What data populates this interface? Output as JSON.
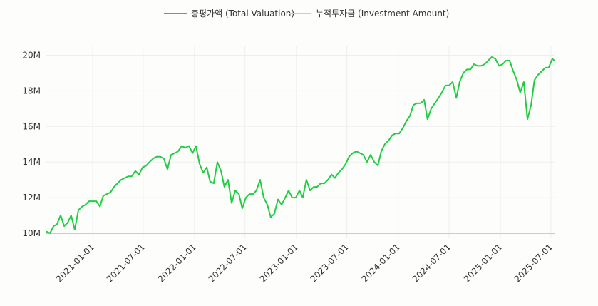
{
  "chart_data": {
    "type": "line",
    "title": "",
    "xlabel": "",
    "ylabel": "",
    "grid": true,
    "legend_placement": "top-center",
    "xlim": [
      "2020-07-19",
      "2025-07-14"
    ],
    "ylim": [
      10000000,
      20500000
    ],
    "x_ticks": [
      "2021-01-01",
      "2021-07-01",
      "2022-01-01",
      "2022-07-01",
      "2023-01-01",
      "2023-07-01",
      "2024-01-01",
      "2024-07-01",
      "2025-01-01",
      "2025-07-01"
    ],
    "y_ticks": [
      {
        "value": 10000000,
        "label": "10M"
      },
      {
        "value": 12000000,
        "label": "12M"
      },
      {
        "value": 14000000,
        "label": "14M"
      },
      {
        "value": 16000000,
        "label": "16M"
      },
      {
        "value": 18000000,
        "label": "18M"
      },
      {
        "value": 20000000,
        "label": "20M"
      }
    ],
    "x": [
      "2020-07-19",
      "2020-08-01",
      "2020-08-14",
      "2020-08-26",
      "2020-09-08",
      "2020-09-21",
      "2020-10-04",
      "2020-10-16",
      "2020-10-29",
      "2020-11-11",
      "2020-11-24",
      "2020-12-06",
      "2020-12-19",
      "2021-01-01",
      "2021-01-14",
      "2021-01-27",
      "2021-02-08",
      "2021-02-21",
      "2021-03-06",
      "2021-03-19",
      "2021-03-31",
      "2021-04-13",
      "2021-04-26",
      "2021-05-09",
      "2021-05-21",
      "2021-06-03",
      "2021-06-16",
      "2021-06-29",
      "2021-07-12",
      "2021-07-24",
      "2021-08-06",
      "2021-08-19",
      "2021-09-01",
      "2021-09-13",
      "2021-09-26",
      "2021-10-09",
      "2021-10-22",
      "2021-11-03",
      "2021-11-16",
      "2021-11-29",
      "2021-12-12",
      "2021-12-25",
      "2022-01-06",
      "2022-01-19",
      "2022-02-01",
      "2022-02-14",
      "2022-02-26",
      "2022-03-11",
      "2022-03-24",
      "2022-04-06",
      "2022-04-18",
      "2022-05-01",
      "2022-05-14",
      "2022-05-27",
      "2022-06-09",
      "2022-06-21",
      "2022-07-04",
      "2022-07-17",
      "2022-07-30",
      "2022-08-11",
      "2022-08-24",
      "2022-09-06",
      "2022-09-19",
      "2022-10-01",
      "2022-10-14",
      "2022-10-27",
      "2022-11-09",
      "2022-11-22",
      "2022-12-04",
      "2022-12-17",
      "2022-12-30",
      "2023-01-12",
      "2023-01-24",
      "2023-02-06",
      "2023-02-19",
      "2023-03-04",
      "2023-03-16",
      "2023-03-29",
      "2023-04-11",
      "2023-04-24",
      "2023-05-07",
      "2023-05-19",
      "2023-06-01",
      "2023-06-14",
      "2023-06-27",
      "2023-07-09",
      "2023-07-22",
      "2023-08-04",
      "2023-08-17",
      "2023-08-29",
      "2023-09-11",
      "2023-09-24",
      "2023-10-07",
      "2023-10-20",
      "2023-11-01",
      "2023-11-14",
      "2023-11-27",
      "2023-12-10",
      "2023-12-22",
      "2024-01-04",
      "2024-01-17",
      "2024-01-30",
      "2024-02-12",
      "2024-02-24",
      "2024-03-08",
      "2024-03-21",
      "2024-04-03",
      "2024-04-15",
      "2024-04-28",
      "2024-05-11",
      "2024-05-24",
      "2024-06-05",
      "2024-06-18",
      "2024-07-01",
      "2024-07-14",
      "2024-07-27",
      "2024-08-08",
      "2024-08-21",
      "2024-09-03",
      "2024-09-16",
      "2024-09-28",
      "2024-10-11",
      "2024-10-24",
      "2024-11-06",
      "2024-11-18",
      "2024-12-01",
      "2024-12-14",
      "2024-12-27",
      "2025-01-09",
      "2025-01-21",
      "2025-02-03",
      "2025-02-16",
      "2025-03-01",
      "2025-03-13",
      "2025-03-26",
      "2025-04-08",
      "2025-04-21",
      "2025-05-03",
      "2025-05-16",
      "2025-05-29",
      "2025-06-11",
      "2025-06-23",
      "2025-07-06",
      "2025-07-14"
    ],
    "series": [
      {
        "name": "총평가액 (Total Valuation)",
        "color": "#22cc44",
        "values": [
          10100000,
          10000000,
          10400000,
          10500000,
          11000000,
          10400000,
          10600000,
          11000000,
          10200000,
          11300000,
          11500000,
          11600000,
          11800000,
          11800000,
          11800000,
          11500000,
          12100000,
          12200000,
          12300000,
          12600000,
          12800000,
          13000000,
          13100000,
          13200000,
          13200000,
          13500000,
          13300000,
          13700000,
          13800000,
          14000000,
          14200000,
          14300000,
          14300000,
          14200000,
          13600000,
          14400000,
          14500000,
          14600000,
          14900000,
          14800000,
          14900000,
          14500000,
          14900000,
          13900000,
          13400000,
          13700000,
          12900000,
          12800000,
          14000000,
          13500000,
          12600000,
          13000000,
          11700000,
          12400000,
          12200000,
          11400000,
          12000000,
          12200000,
          12200000,
          12400000,
          13000000,
          12000000,
          11600000,
          10900000,
          11100000,
          11900000,
          11600000,
          12000000,
          12400000,
          12000000,
          12000000,
          12400000,
          12000000,
          13000000,
          12400000,
          12600000,
          12600000,
          12800000,
          12800000,
          13000000,
          13300000,
          13100000,
          13400000,
          13600000,
          13900000,
          14300000,
          14500000,
          14600000,
          14500000,
          14400000,
          14000000,
          14400000,
          14000000,
          13800000,
          14600000,
          15000000,
          15200000,
          15500000,
          15600000,
          15600000,
          15900000,
          16300000,
          16600000,
          17200000,
          17300000,
          17300000,
          17500000,
          16400000,
          17000000,
          17300000,
          17600000,
          17900000,
          18300000,
          18300000,
          18500000,
          17600000,
          18500000,
          19000000,
          19200000,
          19200000,
          19500000,
          19400000,
          19400000,
          19500000,
          19700000,
          19900000,
          19800000,
          19400000,
          19500000,
          19700000,
          19700000,
          19100000,
          18600000,
          17900000,
          18500000,
          16400000,
          17200000,
          18600000,
          18900000,
          19100000,
          19300000,
          19300000,
          19800000,
          19700000
        ]
      },
      {
        "name": "누적투자금 (Investment Amount)",
        "color": "#cccccc",
        "values": "constant",
        "constant_value": 10000000
      }
    ]
  }
}
